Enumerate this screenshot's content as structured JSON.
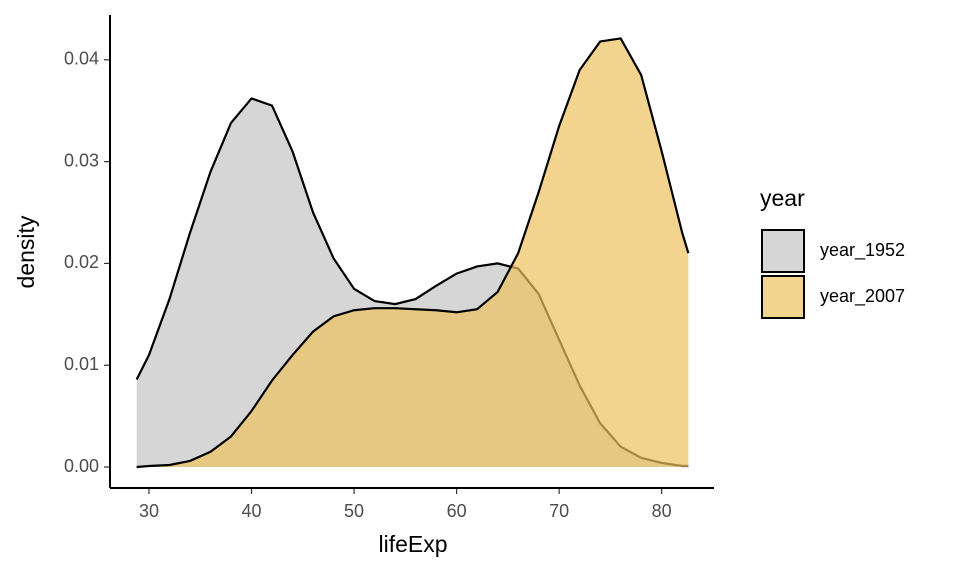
{
  "chart_data": {
    "type": "area",
    "x_label": "lifeExp",
    "y_label": "density",
    "legend_title": "year",
    "x": [
      28.8,
      30,
      32,
      34,
      36,
      38,
      40,
      42,
      44,
      46,
      48,
      50,
      52,
      54,
      56,
      58,
      60,
      62,
      64,
      66,
      68,
      70,
      72,
      74,
      76,
      78,
      80,
      82,
      82.6
    ],
    "series": [
      {
        "name": "year_1952",
        "color": "#d6d6d6",
        "values": [
          0.0086,
          0.011,
          0.0165,
          0.023,
          0.029,
          0.0338,
          0.0362,
          0.0355,
          0.031,
          0.025,
          0.0205,
          0.0175,
          0.0163,
          0.016,
          0.0165,
          0.0178,
          0.019,
          0.0197,
          0.02,
          0.0195,
          0.017,
          0.0125,
          0.008,
          0.0043,
          0.002,
          0.0009,
          0.0004,
          0.0001,
          0.0001
        ]
      },
      {
        "name": "year_2007",
        "color": "#edc25f",
        "values": [
          0,
          0.0001,
          0.0002,
          0.0006,
          0.0015,
          0.003,
          0.0055,
          0.0085,
          0.011,
          0.0133,
          0.0148,
          0.0154,
          0.0156,
          0.0156,
          0.0155,
          0.0154,
          0.0152,
          0.0155,
          0.0172,
          0.021,
          0.027,
          0.0335,
          0.039,
          0.0418,
          0.0421,
          0.0385,
          0.031,
          0.023,
          0.021
        ]
      }
    ],
    "xlim": [
      26.2,
      85.1
    ],
    "ylim": [
      -0.00206,
      0.0444
    ],
    "xticks": [
      30,
      40,
      50,
      60,
      70,
      80
    ],
    "yticks": [
      {
        "value": 0,
        "label": "0.00"
      },
      0.01,
      0.02,
      0.03,
      0.04
    ],
    "grid": false,
    "legend": "right"
  }
}
